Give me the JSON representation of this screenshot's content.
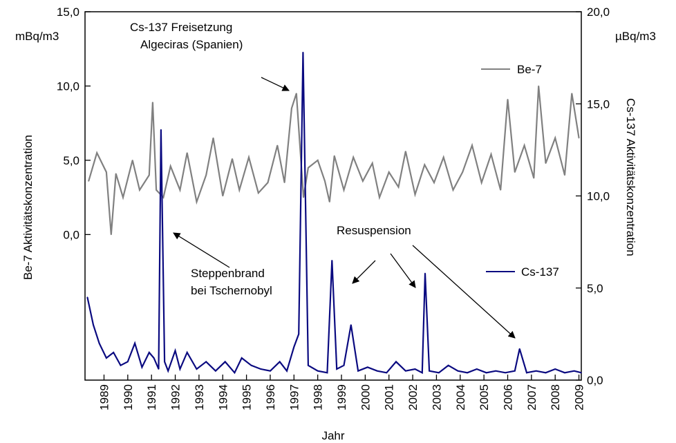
{
  "chart_data": {
    "type": "line",
    "xlabel": "Jahr",
    "x_ticks": [
      "1989",
      "1990",
      "1991",
      "1992",
      "1993",
      "1994",
      "1995",
      "1996",
      "1997",
      "1998",
      "1999",
      "2000",
      "2001",
      "2002",
      "2003",
      "2004",
      "2005",
      "2006",
      "2007",
      "2008",
      "2009"
    ],
    "left_axis": {
      "label": "Be-7 Aktivitätskonzentration",
      "unit": "mBq/m3",
      "ticks": [
        "0,0",
        "5,0",
        "10,0",
        "15,0"
      ],
      "tick_values": [
        0,
        5,
        10,
        15
      ],
      "range": [
        -9.8,
        15
      ]
    },
    "right_axis": {
      "label": "Cs-137 Aktivitätskonzentration",
      "unit": "µBq/m3",
      "ticks": [
        "0,0",
        "5,0",
        "10,0",
        "15,0",
        "20,0"
      ],
      "tick_values": [
        0,
        5,
        10,
        15,
        20
      ],
      "range": [
        0,
        20
      ]
    },
    "x_range": [
      1988.7,
      2009.6
    ],
    "legend_placement": "right",
    "series": [
      {
        "name": "Be-7",
        "color": "#808080",
        "axis": "left",
        "x": [
          1988.85,
          1989.2,
          1989.6,
          1989.8,
          1990.0,
          1990.3,
          1990.7,
          1991.0,
          1991.4,
          1991.55,
          1991.7,
          1992.0,
          1992.3,
          1992.7,
          1993.0,
          1993.4,
          1993.8,
          1994.1,
          1994.5,
          1994.9,
          1995.2,
          1995.6,
          1996.0,
          1996.4,
          1996.8,
          1997.1,
          1997.4,
          1997.6,
          1997.75,
          1997.9,
          1998.1,
          1998.5,
          1998.8,
          1999.0,
          1999.2,
          1999.6,
          2000.0,
          2000.4,
          2000.8,
          2001.1,
          2001.5,
          2001.9,
          2002.2,
          2002.6,
          2003.0,
          2003.4,
          2003.8,
          2004.2,
          2004.6,
          2005.0,
          2005.4,
          2005.8,
          2006.2,
          2006.5,
          2006.8,
          2007.2,
          2007.6,
          2007.8,
          2008.1,
          2008.5,
          2008.9,
          2009.2,
          2009.5
        ],
        "values": [
          3.6,
          5.5,
          4.2,
          0.0,
          4.1,
          2.5,
          5.0,
          3.0,
          4.0,
          8.9,
          3.0,
          2.5,
          4.6,
          3.0,
          5.5,
          2.2,
          4.0,
          6.5,
          2.6,
          5.1,
          3.0,
          5.2,
          2.8,
          3.5,
          6.0,
          3.5,
          8.5,
          9.5,
          6.0,
          2.5,
          4.5,
          5.0,
          3.6,
          2.2,
          5.3,
          3.0,
          5.2,
          3.6,
          4.8,
          2.5,
          4.2,
          3.2,
          5.6,
          2.7,
          4.7,
          3.5,
          5.2,
          3.0,
          4.2,
          6.0,
          3.5,
          5.4,
          3.0,
          9.1,
          4.2,
          6.0,
          3.8,
          10.0,
          4.8,
          6.5,
          4.0,
          9.5,
          6.5
        ]
      },
      {
        "name": "Cs-137",
        "color": "#0a0a80",
        "axis": "right",
        "x": [
          1988.8,
          1989.05,
          1989.3,
          1989.6,
          1989.9,
          1990.2,
          1990.5,
          1990.8,
          1991.1,
          1991.4,
          1991.6,
          1991.8,
          1991.9,
          1992.05,
          1992.2,
          1992.5,
          1992.7,
          1993.0,
          1993.4,
          1993.8,
          1994.2,
          1994.6,
          1995.0,
          1995.3,
          1995.7,
          1996.1,
          1996.5,
          1996.9,
          1997.2,
          1997.5,
          1997.7,
          1997.88,
          1998.1,
          1998.5,
          1998.9,
          1999.1,
          1999.3,
          1999.6,
          1999.9,
          2000.2,
          2000.6,
          2001.0,
          2001.4,
          2001.8,
          2002.2,
          2002.6,
          2002.9,
          2003.02,
          2003.2,
          2003.6,
          2004.0,
          2004.4,
          2004.8,
          2005.2,
          2005.6,
          2006.0,
          2006.4,
          2006.8,
          2007.0,
          2007.3,
          2007.7,
          2008.1,
          2008.5,
          2008.9,
          2009.3,
          2009.6
        ],
        "values": [
          4.5,
          3.0,
          2.0,
          1.2,
          1.5,
          0.8,
          1.0,
          2.0,
          0.7,
          1.5,
          1.2,
          0.6,
          13.6,
          1.0,
          0.5,
          1.6,
          0.6,
          1.5,
          0.6,
          1.0,
          0.5,
          1.0,
          0.4,
          1.2,
          0.8,
          0.6,
          0.5,
          1.0,
          0.5,
          1.8,
          2.5,
          17.8,
          0.8,
          0.5,
          0.4,
          6.5,
          0.6,
          0.8,
          3.0,
          0.5,
          0.7,
          0.5,
          0.4,
          1.0,
          0.5,
          0.6,
          0.4,
          5.8,
          0.5,
          0.4,
          0.8,
          0.5,
          0.4,
          0.6,
          0.4,
          0.5,
          0.4,
          0.5,
          1.7,
          0.4,
          0.5,
          0.4,
          0.6,
          0.4,
          0.5,
          0.4
        ]
      }
    ],
    "annotations": [
      {
        "id": "algeciras",
        "lines": [
          "Cs-137 Freisetzung",
          "Algeciras (Spanien)"
        ]
      },
      {
        "id": "steppe",
        "lines": [
          "Steppenbrand",
          "bei Tschernobyl"
        ]
      },
      {
        "id": "resusp",
        "lines": [
          "Resuspension"
        ]
      }
    ]
  }
}
